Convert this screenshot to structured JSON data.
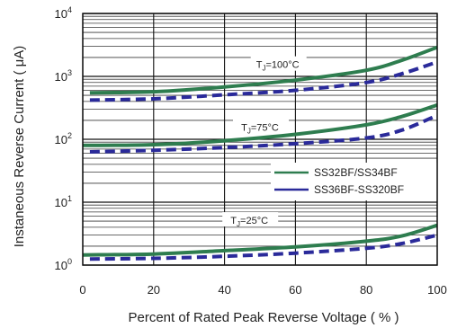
{
  "chart_data": {
    "type": "line",
    "xlabel": "Percent of Rated Peak Reverse Voltage ( % )",
    "ylabel": "Instaneous Reverse Current ( μA)",
    "xlim": [
      0,
      100
    ],
    "ylim": [
      1,
      10000
    ],
    "yscale": "log",
    "x_ticks": [
      0,
      20,
      40,
      60,
      80,
      100
    ],
    "x_tick_labels": [
      "0",
      "20",
      "40",
      "60",
      "80",
      "100"
    ],
    "y_ticks": [
      {
        "value": 1,
        "base": "10",
        "exp": "0"
      },
      {
        "value": 10,
        "base": "10",
        "exp": "1"
      },
      {
        "value": 100,
        "base": "10",
        "exp": "2"
      },
      {
        "value": 1000,
        "base": "10",
        "exp": "3"
      },
      {
        "value": 10000,
        "base": "10",
        "exp": "4"
      }
    ],
    "grid": true,
    "legend": {
      "placement": "center-right",
      "entries": [
        {
          "label": "SS32BF/SS34BF",
          "color": "#2e7d4f",
          "style": "solid"
        },
        {
          "label": "SS36BF-SS320BF",
          "color": "#2a2a9a",
          "style": "dashed"
        }
      ]
    },
    "annotations": [
      {
        "label_main": "T",
        "label_sub": "J",
        "label_rest": "=100°C",
        "x": 55,
        "y": 1500
      },
      {
        "label_main": "T",
        "label_sub": "J",
        "label_rest": "=75°C",
        "x": 50,
        "y": 150
      },
      {
        "label_main": "T",
        "label_sub": "J",
        "label_rest": "=25°C",
        "x": 47,
        "y": 5
      }
    ],
    "series": [
      {
        "name": "SS32BF/SS34BF",
        "group": "T_J=100°C",
        "color": "#2e7d4f",
        "style": "solid",
        "x": [
          2,
          20,
          40,
          60,
          80,
          90,
          100
        ],
        "y": [
          550,
          570,
          680,
          870,
          1250,
          1800,
          2900
        ]
      },
      {
        "name": "SS36BF-SS320BF",
        "group": "T_J=100°C",
        "color": "#2a2a9a",
        "style": "dashed",
        "x": [
          2,
          20,
          40,
          60,
          80,
          90,
          100
        ],
        "y": [
          420,
          440,
          510,
          600,
          800,
          1100,
          1700
        ]
      },
      {
        "name": "SS32BF/SS34BF",
        "group": "T_J=75°C",
        "color": "#2e7d4f",
        "style": "solid",
        "x": [
          0,
          20,
          40,
          60,
          80,
          90,
          100
        ],
        "y": [
          80,
          82,
          95,
          120,
          170,
          230,
          350
        ]
      },
      {
        "name": "SS36BF-SS320BF",
        "group": "T_J=75°C",
        "color": "#2a2a9a",
        "style": "dashed",
        "x": [
          2,
          20,
          40,
          60,
          80,
          90,
          100
        ],
        "y": [
          63,
          67,
          74,
          85,
          105,
          140,
          240
        ]
      },
      {
        "name": "SS32BF/SS34BF",
        "group": "T_J=25°C",
        "color": "#2e7d4f",
        "style": "solid",
        "x": [
          0,
          20,
          40,
          60,
          80,
          90,
          100
        ],
        "y": [
          1.45,
          1.5,
          1.7,
          1.95,
          2.4,
          2.9,
          4.3
        ]
      },
      {
        "name": "SS36BF-SS320BF",
        "group": "T_J=25°C",
        "color": "#2a2a9a",
        "style": "dashed",
        "x": [
          2,
          20,
          40,
          60,
          80,
          90,
          100
        ],
        "y": [
          1.25,
          1.28,
          1.38,
          1.55,
          1.85,
          2.2,
          3.0
        ]
      }
    ]
  }
}
